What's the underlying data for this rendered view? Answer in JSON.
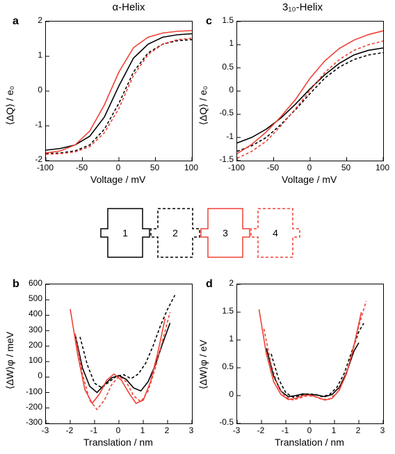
{
  "titles": {
    "left": "α-Helix",
    "right": "3₁₀-Helix"
  },
  "letters": {
    "a": "a",
    "b": "b",
    "c": "c",
    "d": "d"
  },
  "colors": {
    "s1": "#000000",
    "s1_dash": "none",
    "s2": "#000000",
    "s2_dash": "4,3",
    "s3": "#ef4135",
    "s3_dash": "none",
    "s4": "#ef4135",
    "s4_dash": "4,3",
    "axis": "#000000"
  },
  "line_width": 1.6,
  "panel_a": {
    "xlabel": "Voltage / mV",
    "ylabel": "⟨ΔQ⟩ / e₀",
    "xlim": [
      -100,
      100
    ],
    "ylim": [
      -2,
      2
    ],
    "xticks": [
      -100,
      -50,
      0,
      50,
      100
    ],
    "yticks": [
      -2,
      -1,
      0,
      1,
      2
    ],
    "series": {
      "s1": [
        [
          -100,
          -1.7
        ],
        [
          -80,
          -1.65
        ],
        [
          -60,
          -1.55
        ],
        [
          -40,
          -1.3
        ],
        [
          -20,
          -0.75
        ],
        [
          0,
          0.15
        ],
        [
          20,
          0.95
        ],
        [
          40,
          1.35
        ],
        [
          60,
          1.55
        ],
        [
          80,
          1.62
        ],
        [
          100,
          1.65
        ]
      ],
      "s2": [
        [
          -100,
          -1.8
        ],
        [
          -80,
          -1.78
        ],
        [
          -60,
          -1.72
        ],
        [
          -40,
          -1.55
        ],
        [
          -20,
          -1.1
        ],
        [
          0,
          -0.35
        ],
        [
          20,
          0.55
        ],
        [
          40,
          1.1
        ],
        [
          60,
          1.35
        ],
        [
          80,
          1.45
        ],
        [
          100,
          1.48
        ]
      ],
      "s3": [
        [
          -100,
          -1.78
        ],
        [
          -80,
          -1.72
        ],
        [
          -60,
          -1.55
        ],
        [
          -40,
          -1.15
        ],
        [
          -20,
          -0.4
        ],
        [
          0,
          0.55
        ],
        [
          20,
          1.25
        ],
        [
          40,
          1.55
        ],
        [
          60,
          1.67
        ],
        [
          80,
          1.72
        ],
        [
          100,
          1.74
        ]
      ],
      "s4": [
        [
          -100,
          -1.82
        ],
        [
          -80,
          -1.8
        ],
        [
          -60,
          -1.75
        ],
        [
          -40,
          -1.6
        ],
        [
          -20,
          -1.2
        ],
        [
          0,
          -0.5
        ],
        [
          20,
          0.45
        ],
        [
          40,
          1.05
        ],
        [
          60,
          1.35
        ],
        [
          80,
          1.48
        ],
        [
          100,
          1.52
        ]
      ]
    }
  },
  "panel_c": {
    "xlabel": "Voltage / mV",
    "ylabel": "⟨ΔQ⟩ / e₀",
    "xlim": [
      -100,
      100
    ],
    "ylim": [
      -1.5,
      1.5
    ],
    "xticks": [
      -100,
      -50,
      0,
      50,
      100
    ],
    "yticks": [
      -1.5,
      -1.0,
      -0.5,
      0,
      0.5,
      1.0,
      1.5
    ],
    "series": {
      "s1": [
        [
          -100,
          -1.12
        ],
        [
          -80,
          -1.0
        ],
        [
          -60,
          -0.82
        ],
        [
          -40,
          -0.58
        ],
        [
          -20,
          -0.28
        ],
        [
          0,
          0.05
        ],
        [
          20,
          0.35
        ],
        [
          40,
          0.6
        ],
        [
          60,
          0.78
        ],
        [
          80,
          0.88
        ],
        [
          100,
          0.93
        ]
      ],
      "s2": [
        [
          -100,
          -1.3
        ],
        [
          -80,
          -1.18
        ],
        [
          -60,
          -1.0
        ],
        [
          -40,
          -0.72
        ],
        [
          -20,
          -0.4
        ],
        [
          0,
          -0.05
        ],
        [
          20,
          0.28
        ],
        [
          40,
          0.52
        ],
        [
          60,
          0.68
        ],
        [
          80,
          0.78
        ],
        [
          100,
          0.83
        ]
      ],
      "s3": [
        [
          -100,
          -1.35
        ],
        [
          -80,
          -1.15
        ],
        [
          -60,
          -0.88
        ],
        [
          -40,
          -0.55
        ],
        [
          -20,
          -0.18
        ],
        [
          0,
          0.28
        ],
        [
          20,
          0.65
        ],
        [
          40,
          0.92
        ],
        [
          60,
          1.1
        ],
        [
          80,
          1.22
        ],
        [
          100,
          1.3
        ]
      ],
      "s4": [
        [
          -100,
          -1.45
        ],
        [
          -80,
          -1.3
        ],
        [
          -60,
          -1.08
        ],
        [
          -40,
          -0.75
        ],
        [
          -20,
          -0.38
        ],
        [
          0,
          0.02
        ],
        [
          20,
          0.4
        ],
        [
          40,
          0.68
        ],
        [
          60,
          0.88
        ],
        [
          80,
          1.0
        ],
        [
          100,
          1.08
        ]
      ]
    }
  },
  "panel_b": {
    "xlabel": "Translation / nm",
    "ylabel": "⟨ΔW⟩φ / meV",
    "xlim": [
      -3,
      3
    ],
    "ylim": [
      -300,
      600
    ],
    "xticks": [
      -3,
      -2,
      -1,
      0,
      1,
      2,
      3
    ],
    "yticks": [
      -300,
      -200,
      -100,
      0,
      100,
      200,
      300,
      400,
      500,
      600
    ],
    "series": {
      "s1": [
        [
          -1.8,
          280
        ],
        [
          -1.5,
          60
        ],
        [
          -1.2,
          -60
        ],
        [
          -0.9,
          -100
        ],
        [
          -0.6,
          -50
        ],
        [
          -0.3,
          -5
        ],
        [
          0,
          10
        ],
        [
          0.3,
          -15
        ],
        [
          0.6,
          -70
        ],
        [
          0.9,
          -90
        ],
        [
          1.2,
          -30
        ],
        [
          1.5,
          80
        ],
        [
          1.8,
          220
        ],
        [
          2.1,
          350
        ]
      ],
      "s2": [
        [
          -1.6,
          260
        ],
        [
          -1.3,
          80
        ],
        [
          -1.0,
          -40
        ],
        [
          -0.7,
          -70
        ],
        [
          -0.4,
          -30
        ],
        [
          -0.1,
          5
        ],
        [
          0.2,
          15
        ],
        [
          0.5,
          -10
        ],
        [
          0.8,
          20
        ],
        [
          1.1,
          90
        ],
        [
          1.4,
          200
        ],
        [
          1.7,
          330
        ],
        [
          2.0,
          440
        ],
        [
          2.3,
          530
        ]
      ],
      "s3": [
        [
          -2.0,
          440
        ],
        [
          -1.7,
          150
        ],
        [
          -1.4,
          -80
        ],
        [
          -1.1,
          -170
        ],
        [
          -0.8,
          -110
        ],
        [
          -0.5,
          -20
        ],
        [
          -0.2,
          20
        ],
        [
          0.1,
          -20
        ],
        [
          0.4,
          -100
        ],
        [
          0.7,
          -170
        ],
        [
          1.0,
          -150
        ],
        [
          1.3,
          -30
        ],
        [
          1.6,
          160
        ],
        [
          1.9,
          380
        ]
      ],
      "s4": [
        [
          -1.8,
          280
        ],
        [
          -1.5,
          20
        ],
        [
          -1.2,
          -150
        ],
        [
          -0.9,
          -210
        ],
        [
          -0.6,
          -150
        ],
        [
          -0.3,
          -50
        ],
        [
          0,
          5
        ],
        [
          0.3,
          -30
        ],
        [
          0.6,
          -120
        ],
        [
          0.9,
          -160
        ],
        [
          1.2,
          -90
        ],
        [
          1.5,
          60
        ],
        [
          1.8,
          240
        ],
        [
          2.1,
          420
        ]
      ]
    }
  },
  "panel_d": {
    "xlabel": "Translation / nm",
    "ylabel": "⟨ΔW⟩φ / eV",
    "xlim": [
      -3,
      3
    ],
    "ylim": [
      -0.5,
      2.0
    ],
    "xticks": [
      -3,
      -2,
      -1,
      0,
      1,
      2,
      3
    ],
    "yticks": [
      -0.5,
      0,
      0.5,
      1.0,
      1.5,
      2.0
    ],
    "series": {
      "s1": [
        [
          -1.8,
          0.85
        ],
        [
          -1.5,
          0.35
        ],
        [
          -1.2,
          0.08
        ],
        [
          -0.9,
          -0.02
        ],
        [
          -0.6,
          0.0
        ],
        [
          -0.3,
          0.03
        ],
        [
          0,
          0.02
        ],
        [
          0.3,
          0.01
        ],
        [
          0.6,
          -0.02
        ],
        [
          0.9,
          0.02
        ],
        [
          1.2,
          0.15
        ],
        [
          1.5,
          0.42
        ],
        [
          1.8,
          0.8
        ],
        [
          2.0,
          0.95
        ]
      ],
      "s2": [
        [
          -1.6,
          0.75
        ],
        [
          -1.3,
          0.3
        ],
        [
          -1.0,
          0.05
        ],
        [
          -0.7,
          -0.03
        ],
        [
          -0.4,
          0.0
        ],
        [
          -0.1,
          0.03
        ],
        [
          0.2,
          0.02
        ],
        [
          0.5,
          -0.02
        ],
        [
          0.8,
          0.02
        ],
        [
          1.1,
          0.15
        ],
        [
          1.4,
          0.4
        ],
        [
          1.7,
          0.78
        ],
        [
          2.0,
          1.15
        ],
        [
          2.2,
          1.3
        ]
      ],
      "s3": [
        [
          -2.1,
          1.55
        ],
        [
          -1.8,
          0.75
        ],
        [
          -1.5,
          0.25
        ],
        [
          -1.2,
          0.02
        ],
        [
          -0.9,
          -0.07
        ],
        [
          -0.6,
          -0.05
        ],
        [
          -0.3,
          0.0
        ],
        [
          0,
          0.01
        ],
        [
          0.3,
          -0.03
        ],
        [
          0.6,
          -0.08
        ],
        [
          0.9,
          -0.05
        ],
        [
          1.2,
          0.1
        ],
        [
          1.5,
          0.4
        ],
        [
          1.8,
          0.9
        ],
        [
          2.1,
          1.5
        ]
      ],
      "s4": [
        [
          -1.9,
          1.2
        ],
        [
          -1.6,
          0.55
        ],
        [
          -1.3,
          0.15
        ],
        [
          -1.0,
          -0.03
        ],
        [
          -0.7,
          -0.08
        ],
        [
          -0.4,
          -0.04
        ],
        [
          -0.1,
          0.0
        ],
        [
          0.2,
          -0.02
        ],
        [
          0.5,
          -0.07
        ],
        [
          0.8,
          -0.06
        ],
        [
          1.1,
          0.05
        ],
        [
          1.4,
          0.3
        ],
        [
          1.7,
          0.7
        ],
        [
          2.0,
          1.25
        ],
        [
          2.3,
          1.7
        ]
      ]
    }
  },
  "legend": {
    "labels": [
      "1",
      "2",
      "3",
      "4"
    ]
  }
}
